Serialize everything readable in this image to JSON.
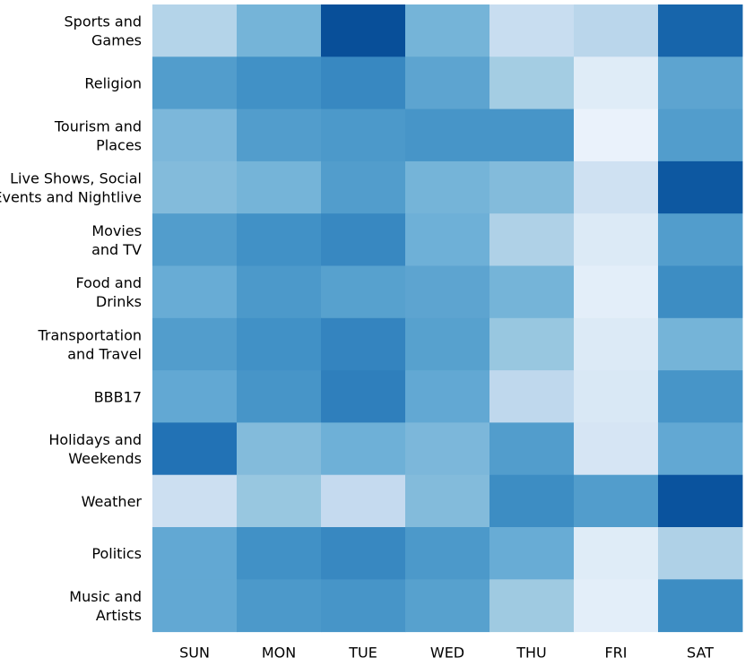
{
  "chart_data": {
    "type": "heatmap",
    "title": "",
    "xlabel": "",
    "ylabel": "",
    "value_range": [
      0,
      1
    ],
    "colormap": "Blues",
    "columns": [
      "SUN",
      "MON",
      "TUE",
      "WED",
      "THU",
      "FRI",
      "SAT"
    ],
    "rows": [
      {
        "label": [
          "Sports and",
          "Games"
        ],
        "values": [
          0.3,
          0.5,
          0.98,
          0.5,
          0.22,
          0.28,
          0.88
        ]
      },
      {
        "label": [
          "Religion"
        ],
        "values": [
          0.62,
          0.68,
          0.72,
          0.58,
          0.36,
          0.08,
          0.58
        ]
      },
      {
        "label": [
          "Tourism and",
          "Places"
        ],
        "values": [
          0.48,
          0.62,
          0.64,
          0.66,
          0.66,
          0.02,
          0.62
        ]
      },
      {
        "label": [
          "Live Shows, Social",
          "Events and Nightlive"
        ],
        "values": [
          0.46,
          0.5,
          0.62,
          0.5,
          0.46,
          0.18,
          0.94
        ]
      },
      {
        "label": [
          "Movies",
          "and TV"
        ],
        "values": [
          0.62,
          0.68,
          0.72,
          0.52,
          0.32,
          0.1,
          0.62
        ]
      },
      {
        "label": [
          "Food and",
          "Drinks"
        ],
        "values": [
          0.54,
          0.64,
          0.6,
          0.58,
          0.5,
          0.06,
          0.7
        ]
      },
      {
        "label": [
          "Transportation",
          "and Travel"
        ],
        "values": [
          0.62,
          0.68,
          0.74,
          0.6,
          0.4,
          0.1,
          0.5
        ]
      },
      {
        "label": [
          "BBB17"
        ],
        "values": [
          0.56,
          0.66,
          0.76,
          0.56,
          0.26,
          0.12,
          0.66
        ]
      },
      {
        "label": [
          "Holidays and",
          "Weekends"
        ],
        "values": [
          0.82,
          0.46,
          0.52,
          0.48,
          0.62,
          0.14,
          0.56
        ]
      },
      {
        "label": [
          "Weather"
        ],
        "values": [
          0.2,
          0.4,
          0.24,
          0.46,
          0.7,
          0.62,
          0.96
        ]
      },
      {
        "label": [
          "Politics"
        ],
        "values": [
          0.56,
          0.68,
          0.72,
          0.64,
          0.54,
          0.08,
          0.32
        ]
      },
      {
        "label": [
          "Music and",
          "Artists"
        ],
        "values": [
          0.56,
          0.64,
          0.66,
          0.6,
          0.38,
          0.06,
          0.7
        ]
      }
    ]
  }
}
